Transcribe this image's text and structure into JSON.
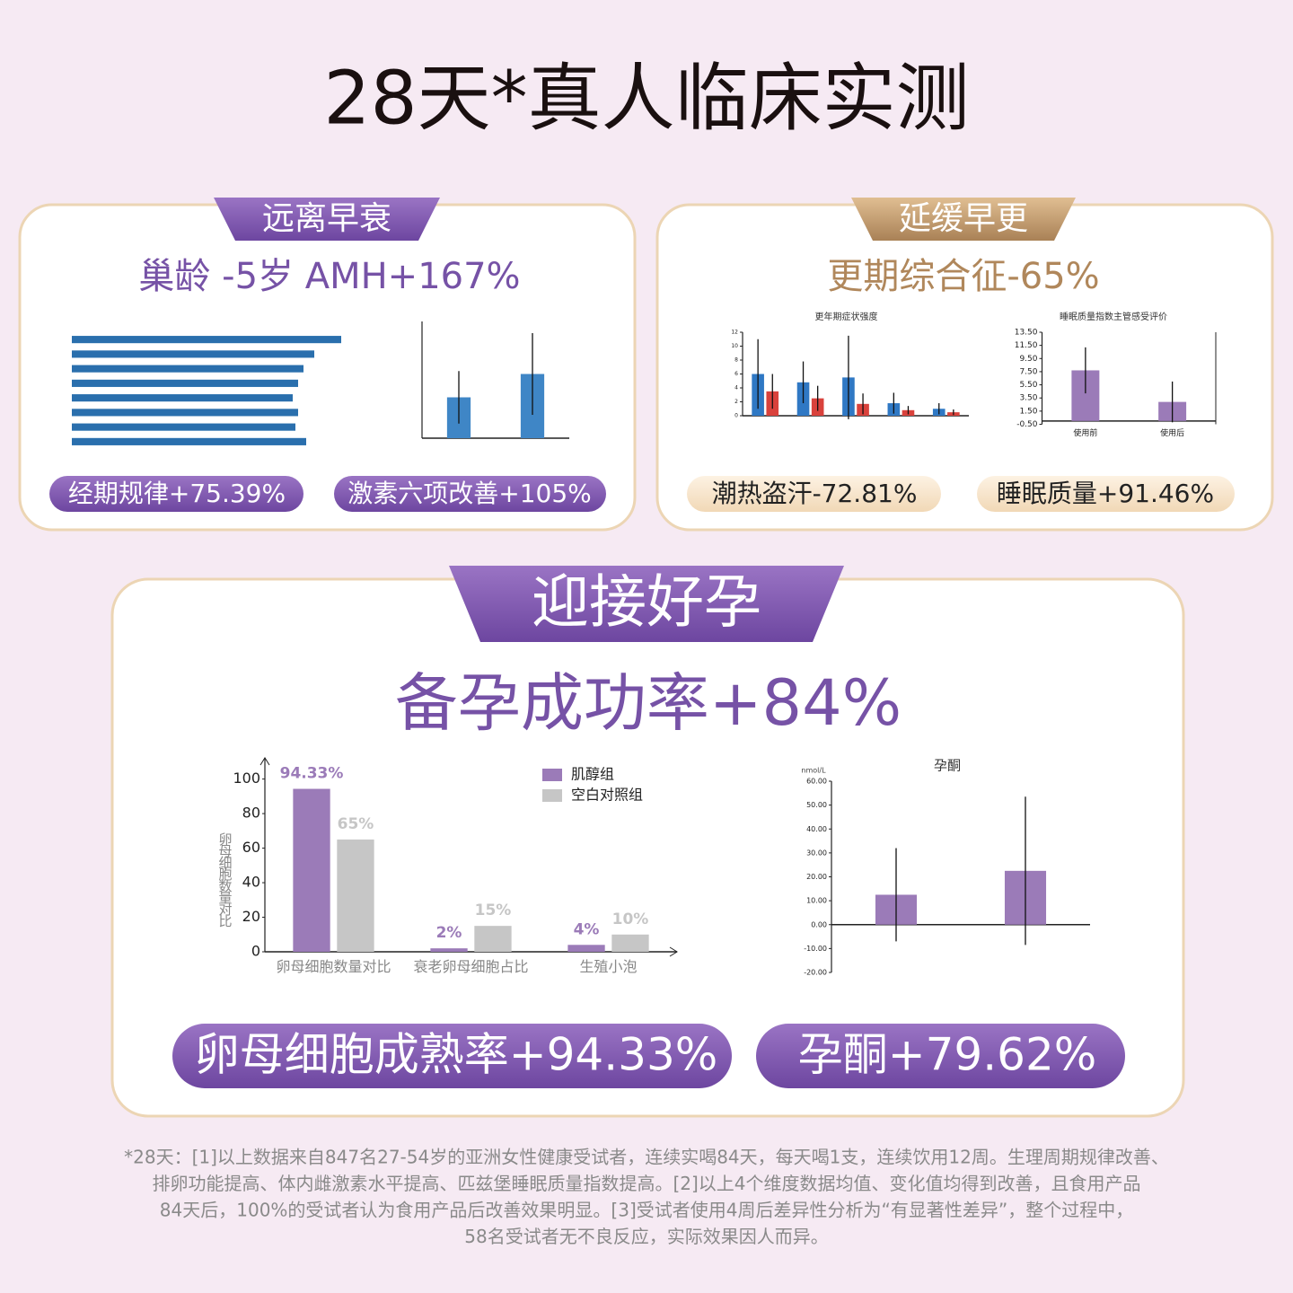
{
  "title": "28天*真人临床实测",
  "panels": [
    {
      "tag": "远离早衰",
      "headline": "巢龄 -5岁 AMH+167%",
      "badges": [
        "经期规律+75.39%",
        "激素六项改善+105%"
      ]
    },
    {
      "tag": "延缓早更",
      "headline": "更期综合征-65%",
      "badges": [
        "潮热盗汗-72.81%",
        "睡眠质量+91.46%"
      ]
    },
    {
      "tag": "迎接好孕",
      "headline": "备孕成功率+84%",
      "badges": [
        "卵母细胞成熟率+94.33%",
        "孕酮+79.62%"
      ]
    }
  ],
  "chart_data": [
    {
      "type": "bar",
      "categories": [
        "卵母细胞数量对比",
        "衰老卵母细胞占比",
        "生殖小泡"
      ],
      "series": [
        {
          "name": "肌醇组",
          "color": "#9b7bb8",
          "values": [
            94.33,
            2,
            4
          ],
          "value_labels": [
            "94.33%",
            "2%",
            "4%"
          ]
        },
        {
          "name": "空白对照组",
          "color": "#c6c6c6",
          "values": [
            65,
            15,
            10
          ],
          "value_labels": [
            "65%",
            "15%",
            "10%"
          ]
        }
      ],
      "y_label": "卵母细胞数量对比",
      "ylim": [
        0,
        105
      ],
      "yticks": [
        0,
        20,
        40,
        60,
        80,
        100
      ],
      "legend": "top-right"
    },
    {
      "type": "hbar",
      "values": [
        100,
        90,
        86,
        84,
        82,
        84,
        83,
        87
      ],
      "color": "#2a6fad",
      "xlim": [
        0,
        100
      ]
    },
    {
      "type": "bar",
      "values": [
        7,
        11
      ],
      "errors": [
        4.5,
        7
      ],
      "color": "#3f86c6",
      "ylim": [
        0,
        20
      ]
    },
    {
      "type": "bar",
      "title": "更年期症状强度",
      "series": [
        {
          "color": "#2f78c4",
          "values": [
            6,
            4.8,
            5.5,
            1.8,
            1
          ],
          "errors": [
            5,
            3,
            6,
            1.5,
            0.8
          ]
        },
        {
          "color": "#d9423c",
          "values": [
            3.5,
            2.5,
            1.7,
            0.8,
            0.5
          ],
          "errors": [
            2.5,
            1.8,
            1.5,
            0.6,
            0.4
          ]
        }
      ],
      "ylim": [
        0,
        12
      ],
      "yticks": [
        0,
        2,
        4,
        6,
        8,
        10,
        12
      ]
    },
    {
      "type": "bar",
      "title": "睡眠质量指数主管感受评价",
      "categories": [
        "使用前",
        "使用后"
      ],
      "values": [
        7.7,
        2.9
      ],
      "errors": [
        3.5,
        3.1
      ],
      "color": "#9b7bb8",
      "ylim": [
        -0.5,
        13.5
      ],
      "yticks": [
        {
          "value": -0.5,
          "label": "-0.50"
        },
        {
          "value": 1.5,
          "label": "1.50"
        },
        {
          "value": 3.5,
          "label": "3.50"
        },
        {
          "value": 5.5,
          "label": "5.50"
        },
        {
          "value": 7.5,
          "label": "7.50"
        },
        {
          "value": 9.5,
          "label": "9.50"
        },
        {
          "value": 11.5,
          "label": "11.50"
        },
        {
          "value": 13.5,
          "label": "13.50"
        }
      ]
    },
    {
      "type": "bar",
      "title": "孕酮",
      "y_label": "nmol/L",
      "values": [
        12.5,
        22.5
      ],
      "errors": [
        19.5,
        31
      ],
      "color": "#9b7bb8",
      "ylim": [
        -20,
        60
      ],
      "yticks": [
        {
          "value": -20,
          "label": "-20.00"
        },
        {
          "value": -10,
          "label": "-10.00"
        },
        {
          "value": 0,
          "label": "0.00"
        },
        {
          "value": 10,
          "label": "10.00"
        },
        {
          "value": 20,
          "label": "20.00"
        },
        {
          "value": 30,
          "label": "30.00"
        },
        {
          "value": 40,
          "label": "40.00"
        },
        {
          "value": 50,
          "label": "50.00"
        },
        {
          "value": 60,
          "label": "60.00"
        }
      ]
    }
  ],
  "footnote": [
    "*28天：[1]以上数据来自847名27-54岁的亚洲女性健康受试者，连续实喝84天，每天喝1支，连续饮用12周。生理周期规律改善、",
    "排卵功能提高、体内雌激素水平提高、匹兹堡睡眠质量指数提高。[2]以上4个维度数据均值、变化值均得到改善，且食用产品",
    "84天后，100%的受试者认为食用产品后改善效果明显。[3]受试者使用4周后差异性分析为“有显著性差异”，整个过程中，",
    "58名受试者无不良反应，实际效果因人而异。"
  ]
}
